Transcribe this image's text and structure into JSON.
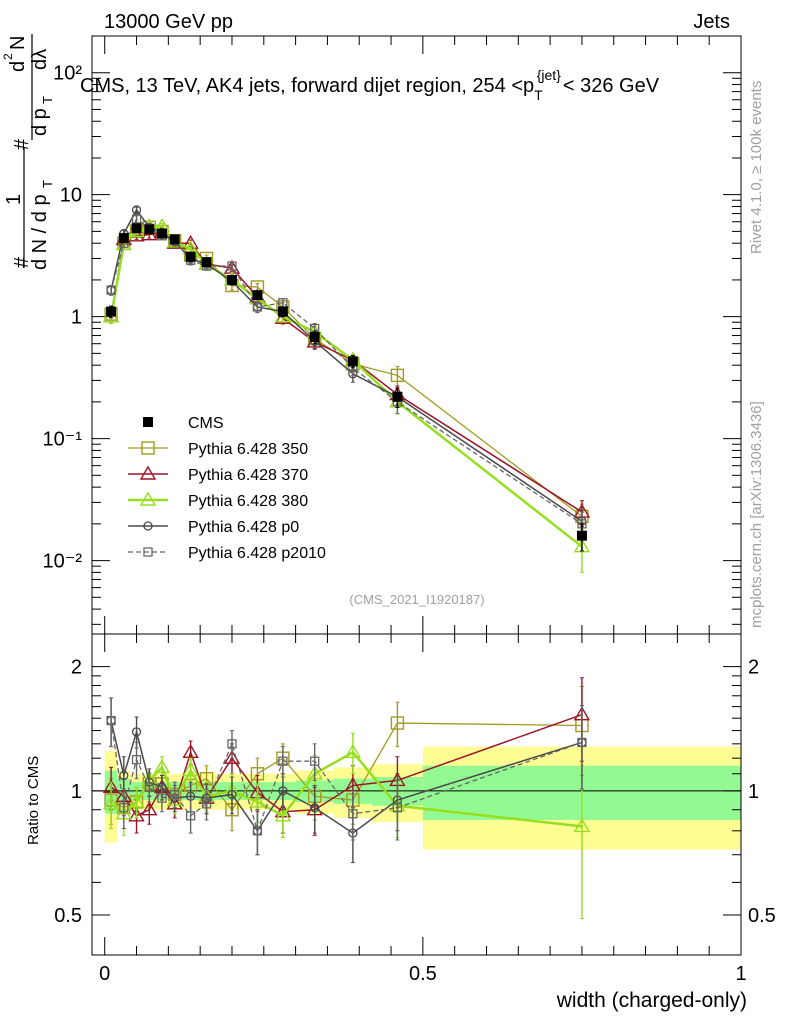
{
  "header": {
    "left": "13000 GeV pp",
    "right": "Jets"
  },
  "plot_title": {
    "main": "CMS, 13 TeV, AK4 jets, forward dijet region, 254 <p",
    "sub": "T",
    "sup": "{jet}",
    "tail": "< 326 GeV"
  },
  "side_labels": {
    "rivet": "Rivet 4.1.0, ≥ 100k events",
    "mcplots": "mcplots.cern.ch [arXiv:1306.3436]"
  },
  "watermark": "(CMS_2021_I1920187)",
  "y_main_label": {
    "hash1": "#",
    "one": "1",
    "dN": "d N / d p",
    "T": "T",
    "hash2": "#",
    "d2N": "d",
    "d2N_exp": "2",
    "N": "N",
    "dp": "d p",
    "dlambda": "dλ"
  },
  "y_ratio_label": "Ratio to CMS",
  "x_label": "width (charged-only)",
  "colors": {
    "cms": "#000000",
    "p350": "#a39a21",
    "p370": "#9b1525",
    "p380": "#96df1e",
    "p0": "#4a4a4a",
    "p2010": "#666666",
    "band_inner": "#93fa93",
    "band_outer": "#fdfd94"
  },
  "chart_data": [
    {
      "type": "line",
      "panel": "main",
      "yscale": "log",
      "xlim": [
        -0.02,
        1.0
      ],
      "ylim": [
        0.0025,
        200
      ],
      "x_ticks": [
        "0",
        "0.5",
        "1"
      ],
      "y_ticks": [
        "10⁻²",
        "10⁻¹",
        "1",
        "10",
        "10²"
      ],
      "x": [
        0.0125,
        0.0375,
        0.0625,
        0.0875,
        0.1125,
        0.1375,
        0.1625,
        0.1875,
        0.2125,
        0.2375,
        0.2625,
        0.2875,
        0.3125,
        0.3375,
        0.3625,
        0.3875,
        0.4125,
        0.4375,
        0.4625,
        0.4875,
        0.5125,
        0.5375,
        0.5625,
        0.5875,
        0.6125,
        0.6375,
        0.6625,
        0.6875,
        0.7125,
        0.7375,
        0.7625,
        0.7875,
        0.8125,
        0.8375,
        0.8625,
        0.8875,
        0.9125,
        0.9375,
        0.9625,
        0.9875
      ],
      "series": [
        {
          "name": "CMS",
          "key": "cms",
          "x": [
            0.01,
            0.03,
            0.05,
            0.07,
            0.09,
            0.11,
            0.135,
            0.16,
            0.2,
            0.24,
            0.28,
            0.33,
            0.39,
            0.46,
            0.75
          ],
          "values": [
            1.1,
            4.4,
            5.3,
            5.2,
            4.8,
            4.3,
            3.1,
            2.8,
            2.0,
            1.5,
            1.1,
            0.68,
            0.43,
            0.22,
            0.016
          ],
          "errors": [
            0.12,
            0.3,
            0.3,
            0.3,
            0.3,
            0.3,
            0.25,
            0.2,
            0.15,
            0.12,
            0.1,
            0.08,
            0.05,
            0.04,
            0.004
          ]
        },
        {
          "name": "Pythia 6.428 350",
          "key": "p350",
          "x": [
            0.01,
            0.03,
            0.05,
            0.07,
            0.09,
            0.11,
            0.135,
            0.16,
            0.2,
            0.24,
            0.28,
            0.33,
            0.39,
            0.46,
            0.75
          ],
          "values": [
            1.05,
            4.0,
            5.0,
            5.4,
            5.0,
            4.2,
            3.2,
            3.0,
            1.8,
            1.75,
            1.2,
            0.66,
            0.41,
            0.33,
            0.023
          ],
          "errors": [
            0.12,
            0.3,
            0.3,
            0.3,
            0.3,
            0.3,
            0.25,
            0.2,
            0.15,
            0.12,
            0.1,
            0.08,
            0.05,
            0.06,
            0.006
          ]
        },
        {
          "name": "Pythia 6.428 370",
          "key": "p370",
          "x": [
            0.01,
            0.03,
            0.05,
            0.07,
            0.09,
            0.11,
            0.135,
            0.16,
            0.2,
            0.24,
            0.28,
            0.33,
            0.39,
            0.46,
            0.75
          ],
          "values": [
            1.0,
            4.3,
            4.6,
            4.7,
            4.9,
            4.0,
            4.0,
            2.7,
            2.5,
            1.45,
            0.97,
            0.62,
            0.44,
            0.23,
            0.025
          ],
          "errors": [
            0.12,
            0.3,
            0.3,
            0.3,
            0.3,
            0.3,
            0.25,
            0.2,
            0.15,
            0.12,
            0.1,
            0.08,
            0.05,
            0.04,
            0.006
          ]
        },
        {
          "name": "Pythia 6.428 380",
          "key": "p380",
          "x": [
            0.01,
            0.03,
            0.05,
            0.07,
            0.09,
            0.11,
            0.135,
            0.16,
            0.2,
            0.24,
            0.28,
            0.33,
            0.39,
            0.46,
            0.75
          ],
          "values": [
            1.0,
            3.9,
            5.0,
            5.5,
            5.5,
            4.1,
            3.6,
            2.7,
            2.0,
            1.4,
            1.0,
            0.75,
            0.44,
            0.2,
            0.013
          ],
          "errors": [
            0.12,
            0.3,
            0.3,
            0.3,
            0.3,
            0.3,
            0.25,
            0.2,
            0.15,
            0.12,
            0.1,
            0.08,
            0.05,
            0.04,
            0.005
          ]
        },
        {
          "name": "Pythia 6.428 p0",
          "key": "p0",
          "x": [
            0.01,
            0.03,
            0.05,
            0.07,
            0.09,
            0.11,
            0.135,
            0.16,
            0.2,
            0.24,
            0.28,
            0.33,
            0.39,
            0.46,
            0.75
          ],
          "values": [
            1.65,
            4.8,
            7.5,
            5.4,
            4.9,
            4.1,
            3.0,
            2.7,
            1.95,
            1.2,
            1.1,
            0.63,
            0.34,
            0.22,
            0.021
          ],
          "errors": [
            0.15,
            0.3,
            0.4,
            0.3,
            0.3,
            0.3,
            0.25,
            0.2,
            0.15,
            0.12,
            0.1,
            0.08,
            0.05,
            0.04,
            0.005
          ]
        },
        {
          "name": "Pythia 6.428 p2010",
          "key": "p2010",
          "x": [
            0.01,
            0.03,
            0.05,
            0.07,
            0.09,
            0.11,
            0.135,
            0.16,
            0.2,
            0.24,
            0.28,
            0.33,
            0.39,
            0.46,
            0.75
          ],
          "values": [
            1.65,
            4.0,
            6.3,
            5.3,
            4.6,
            4.2,
            2.9,
            2.6,
            2.6,
            1.2,
            1.3,
            0.8,
            0.38,
            0.2,
            0.02
          ],
          "errors": [
            0.15,
            0.3,
            0.4,
            0.3,
            0.3,
            0.3,
            0.25,
            0.2,
            0.15,
            0.12,
            0.1,
            0.08,
            0.05,
            0.04,
            0.005
          ]
        }
      ],
      "legend": [
        "CMS",
        "Pythia 6.428 350",
        "Pythia 6.428 370",
        "Pythia 6.428 380",
        "Pythia 6.428 p0",
        "Pythia 6.428 p2010"
      ]
    },
    {
      "type": "line",
      "panel": "ratio",
      "yscale": "log",
      "xlim": [
        -0.02,
        1.0
      ],
      "ylim": [
        0.4,
        2.4
      ],
      "y_ticks": [
        "0.5",
        "1",
        "2"
      ],
      "band_edges": [
        0.0,
        0.02,
        0.04,
        0.06,
        0.08,
        0.1,
        0.125,
        0.15,
        0.175,
        0.225,
        0.26,
        0.3,
        0.36,
        0.42,
        0.5,
        1.0
      ],
      "band_inner": [
        0.12,
        0.07,
        0.05,
        0.05,
        0.05,
        0.05,
        0.05,
        0.05,
        0.05,
        0.05,
        0.05,
        0.06,
        0.07,
        0.08,
        0.15
      ],
      "band_outer": [
        0.25,
        0.12,
        0.1,
        0.1,
        0.1,
        0.1,
        0.1,
        0.1,
        0.1,
        0.1,
        0.1,
        0.12,
        0.14,
        0.16,
        0.28
      ],
      "x_ticks": [
        "0",
        "0.5",
        "1"
      ],
      "series": [
        {
          "name": "Pythia 6.428 350",
          "key": "p350",
          "x": [
            0.01,
            0.03,
            0.05,
            0.07,
            0.09,
            0.11,
            0.135,
            0.16,
            0.2,
            0.24,
            0.28,
            0.33,
            0.39,
            0.46,
            0.75
          ],
          "values": [
            0.95,
            0.91,
            0.94,
            1.04,
            1.04,
            0.98,
            1.03,
            1.07,
            0.9,
            1.1,
            1.2,
            0.97,
            0.95,
            1.46,
            1.44
          ],
          "errors": [
            0.12,
            0.1,
            0.08,
            0.07,
            0.07,
            0.07,
            0.08,
            0.08,
            0.1,
            0.1,
            0.1,
            0.12,
            0.12,
            0.18,
            0.35
          ]
        },
        {
          "name": "Pythia 6.428 370",
          "key": "p370",
          "x": [
            0.01,
            0.03,
            0.05,
            0.07,
            0.09,
            0.11,
            0.135,
            0.16,
            0.2,
            0.24,
            0.28,
            0.33,
            0.39,
            0.46,
            0.75
          ],
          "values": [
            1.02,
            0.97,
            0.87,
            0.9,
            1.02,
            0.93,
            1.24,
            0.96,
            1.2,
            0.99,
            0.89,
            0.9,
            1.03,
            1.06,
            1.53
          ],
          "errors": [
            0.12,
            0.1,
            0.08,
            0.07,
            0.07,
            0.07,
            0.08,
            0.08,
            0.1,
            0.1,
            0.1,
            0.12,
            0.12,
            0.15,
            0.35
          ]
        },
        {
          "name": "Pythia 6.428 380",
          "key": "p380",
          "x": [
            0.01,
            0.03,
            0.05,
            0.07,
            0.09,
            0.11,
            0.135,
            0.16,
            0.2,
            0.24,
            0.28,
            0.33,
            0.39,
            0.46,
            0.75
          ],
          "values": [
            0.93,
            0.88,
            0.94,
            1.06,
            1.14,
            0.95,
            1.12,
            0.97,
            1.0,
            0.94,
            0.87,
            1.1,
            1.24,
            0.92,
            0.82
          ],
          "errors": [
            0.12,
            0.1,
            0.08,
            0.07,
            0.07,
            0.07,
            0.08,
            0.08,
            0.1,
            0.1,
            0.1,
            0.12,
            0.14,
            0.15,
            0.33
          ]
        },
        {
          "name": "Pythia 6.428 p0",
          "key": "p0",
          "x": [
            0.01,
            0.03,
            0.05,
            0.07,
            0.09,
            0.11,
            0.135,
            0.16,
            0.2,
            0.24,
            0.28,
            0.33,
            0.39,
            0.46,
            0.75
          ],
          "values": [
            1.48,
            1.09,
            1.39,
            1.05,
            1.02,
            0.96,
            0.97,
            0.96,
            0.98,
            0.8,
            1.0,
            0.91,
            0.79,
            0.95,
            1.31
          ],
          "errors": [
            0.2,
            0.12,
            0.12,
            0.08,
            0.07,
            0.07,
            0.08,
            0.08,
            0.1,
            0.1,
            0.1,
            0.12,
            0.12,
            0.15,
            0.3
          ]
        },
        {
          "name": "Pythia 6.428 p2010",
          "key": "p2010",
          "x": [
            0.01,
            0.03,
            0.05,
            0.07,
            0.09,
            0.11,
            0.135,
            0.16,
            0.2,
            0.24,
            0.28,
            0.33,
            0.39,
            0.46,
            0.75
          ],
          "values": [
            1.48,
            0.91,
            1.19,
            1.02,
            0.96,
            0.98,
            0.87,
            0.93,
            1.3,
            0.8,
            1.18,
            1.18,
            0.88,
            0.91,
            1.31
          ],
          "errors": [
            0.2,
            0.1,
            0.12,
            0.08,
            0.07,
            0.07,
            0.08,
            0.08,
            0.1,
            0.1,
            0.1,
            0.12,
            0.12,
            0.15,
            0.3
          ]
        }
      ]
    }
  ]
}
